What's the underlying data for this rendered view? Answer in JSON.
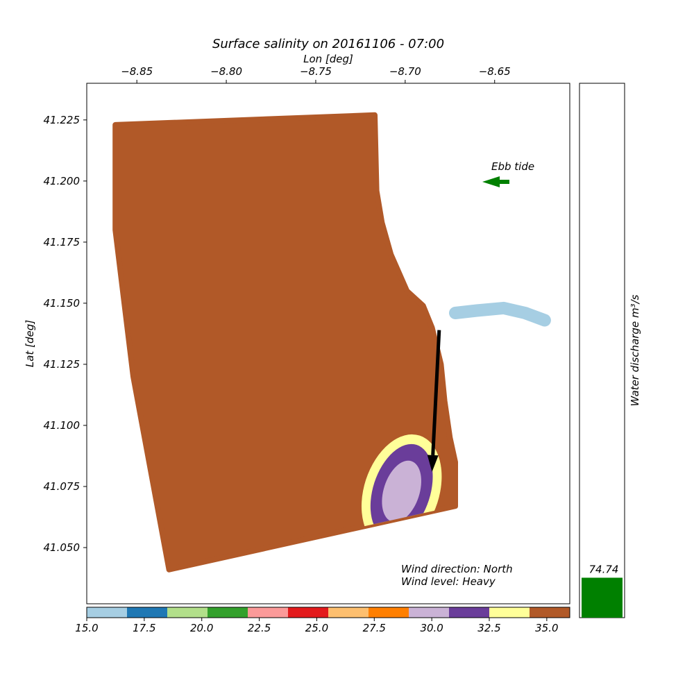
{
  "chart_data": [
    {
      "type": "scatter",
      "title": "Surface salinity on 20161106 - 07:00",
      "xlabel": "Lon [deg]",
      "ylabel": "Lat [deg]",
      "xlim": [
        -8.878,
        -8.608
      ],
      "ylim": [
        41.027,
        41.24
      ],
      "xticks": [
        -8.85,
        -8.8,
        -8.75,
        -8.7,
        -8.65
      ],
      "yticks": [
        41.05,
        41.075,
        41.1,
        41.125,
        41.15,
        41.175,
        41.2,
        41.225
      ],
      "xtick_labels": [
        "−8.85",
        "−8.80",
        "−8.75",
        "−8.70",
        "−8.65"
      ],
      "ytick_labels": [
        "41.050",
        "41.075",
        "41.100",
        "41.125",
        "41.150",
        "41.175",
        "41.200",
        "41.225"
      ],
      "x_axis_position": "top",
      "grid": false,
      "ocean_domain": [
        [
          -8.862,
          41.223
        ],
        [
          -8.717,
          41.227
        ],
        [
          -8.716,
          41.196
        ],
        [
          -8.713,
          41.183
        ],
        [
          -8.708,
          41.17
        ],
        [
          -8.699,
          41.155
        ],
        [
          -8.69,
          41.149
        ],
        [
          -8.685,
          41.14
        ],
        [
          -8.68,
          41.125
        ],
        [
          -8.678,
          41.11
        ],
        [
          -8.675,
          41.095
        ],
        [
          -8.672,
          41.085
        ],
        [
          -8.672,
          41.067
        ],
        [
          -8.832,
          41.041
        ],
        [
          -8.852,
          41.12
        ],
        [
          -8.862,
          41.18
        ]
      ],
      "river_channel": [
        [
          -8.672,
          41.146
        ],
        [
          -8.66,
          41.147
        ],
        [
          -8.645,
          41.148
        ],
        [
          -8.633,
          41.146
        ],
        [
          -8.622,
          41.143
        ]
      ],
      "plume": {
        "center": [
          -8.702,
          41.073
        ],
        "outer_radius_deg": [
          0.021,
          0.024
        ],
        "middle_radius_deg": [
          0.016,
          0.02
        ],
        "inner_radius_deg": [
          0.01,
          0.013
        ],
        "outer_salinity": 33.5,
        "middle_salinity": 31.5,
        "inner_salinity": 30.0
      },
      "background_salinity": 35.0,
      "river_salinity": 15.5,
      "colorbar": {
        "vmin": 15.0,
        "vmax": 36.0,
        "colors": [
          "#a6cee3",
          "#1f78b4",
          "#b2df8a",
          "#33a02c",
          "#fb9a99",
          "#e31a1c",
          "#fdbf6f",
          "#ff7f00",
          "#cab2d6",
          "#6a3d9a",
          "#ffff99",
          "#b15928"
        ],
        "ticks": [
          15.0,
          17.5,
          20.0,
          22.5,
          25.0,
          27.5,
          30.0,
          32.5,
          35.0
        ],
        "tick_labels": [
          "15.0",
          "17.5",
          "20.0",
          "22.5",
          "25.0",
          "27.5",
          "30.0",
          "32.5",
          "35.0"
        ],
        "placement": "bottom"
      },
      "annotations": {
        "tide_label": "Ebb tide",
        "tide_arrow_color": "#008000",
        "wind_direction": "Wind direction: North",
        "wind_level": "Wind level: Heavy",
        "wind_arrow": {
          "from": [
            -8.681,
            41.139
          ],
          "to": [
            -8.685,
            41.081
          ],
          "color": "#000000"
        }
      }
    },
    {
      "type": "bar",
      "ylabel": "Water discharge m³/s",
      "categories": [
        ""
      ],
      "values": [
        74.74
      ],
      "value_label": "74.74",
      "ylim": [
        0,
        1000
      ],
      "color": "#008000"
    }
  ]
}
